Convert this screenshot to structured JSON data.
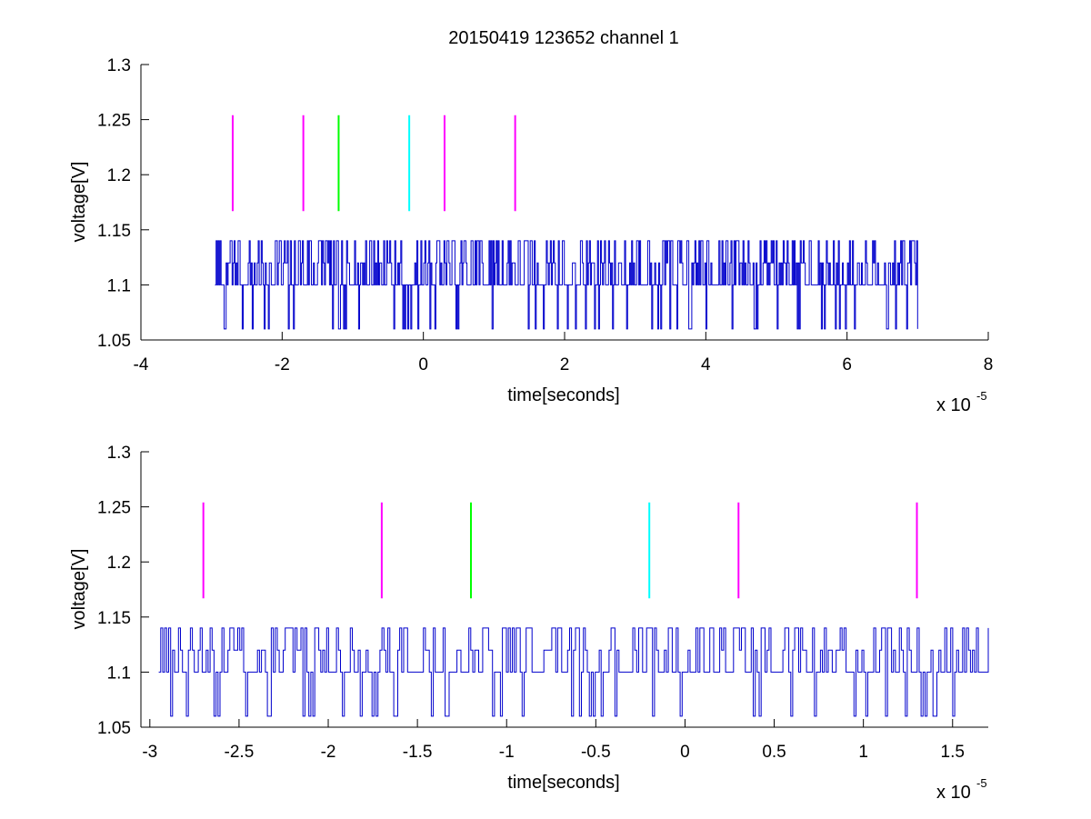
{
  "chart_data": [
    {
      "type": "line",
      "title": "20150419 123652 channel 1",
      "xlabel": "time[seconds]",
      "ylabel": "voltage[V]",
      "x_multiplier": "x 10",
      "x_multiplier_exponent": "-5",
      "xlim": [
        -4,
        8
      ],
      "ylim": [
        1.05,
        1.3
      ],
      "xticks": [
        -4,
        -2,
        0,
        2,
        4,
        6,
        8
      ],
      "xtick_labels": [
        "-4",
        "-2",
        "0",
        "2",
        "4",
        "6",
        "8"
      ],
      "yticks": [
        1.05,
        1.1,
        1.15,
        1.2,
        1.25,
        1.3
      ],
      "ytick_labels": [
        "1.05",
        "1.1",
        "1.15",
        "1.2",
        "1.25",
        "1.3"
      ],
      "grid": false,
      "signal": {
        "color": "#0000cc",
        "x_range": [
          -2.95,
          7.0
        ],
        "levels": [
          1.06,
          1.1,
          1.12,
          1.14
        ],
        "baseline": 1.1,
        "seed": 7
      },
      "markers": [
        {
          "x": -2.7,
          "y0": 1.167,
          "y1": 1.254,
          "color": "#ff00ff"
        },
        {
          "x": -1.7,
          "y0": 1.167,
          "y1": 1.254,
          "color": "#ff00ff"
        },
        {
          "x": -1.2,
          "y0": 1.167,
          "y1": 1.254,
          "color": "#00ff00"
        },
        {
          "x": -0.2,
          "y0": 1.167,
          "y1": 1.254,
          "color": "#00ffff"
        },
        {
          "x": 0.3,
          "y0": 1.167,
          "y1": 1.254,
          "color": "#ff00ff"
        },
        {
          "x": 1.3,
          "y0": 1.167,
          "y1": 1.254,
          "color": "#ff00ff"
        }
      ]
    },
    {
      "type": "line",
      "title": "",
      "xlabel": "time[seconds]",
      "ylabel": "voltage[V]",
      "x_multiplier": "x 10",
      "x_multiplier_exponent": "-5",
      "xlim": [
        -3.05,
        1.7
      ],
      "ylim": [
        1.05,
        1.3
      ],
      "xticks": [
        -3,
        -2.5,
        -2,
        -1.5,
        -1,
        -0.5,
        0,
        0.5,
        1,
        1.5
      ],
      "xtick_labels": [
        "-3",
        "-2.5",
        "-2",
        "-1.5",
        "-1",
        "-0.5",
        "0",
        "0.5",
        "1",
        "1.5"
      ],
      "yticks": [
        1.05,
        1.1,
        1.15,
        1.2,
        1.25,
        1.3
      ],
      "ytick_labels": [
        "1.05",
        "1.1",
        "1.15",
        "1.2",
        "1.25",
        "1.3"
      ],
      "grid": false,
      "signal": {
        "color": "#0000cc",
        "x_range": [
          -2.95,
          1.7
        ],
        "levels": [
          1.06,
          1.1,
          1.12,
          1.14
        ],
        "baseline": 1.1,
        "seed": 13
      },
      "markers": [
        {
          "x": -2.7,
          "y0": 1.167,
          "y1": 1.254,
          "color": "#ff00ff"
        },
        {
          "x": -1.7,
          "y0": 1.167,
          "y1": 1.254,
          "color": "#ff00ff"
        },
        {
          "x": -1.2,
          "y0": 1.167,
          "y1": 1.254,
          "color": "#00ff00"
        },
        {
          "x": -0.2,
          "y0": 1.167,
          "y1": 1.254,
          "color": "#00ffff"
        },
        {
          "x": 0.3,
          "y0": 1.167,
          "y1": 1.254,
          "color": "#ff00ff"
        },
        {
          "x": 1.3,
          "y0": 1.167,
          "y1": 1.254,
          "color": "#ff00ff"
        }
      ]
    }
  ]
}
